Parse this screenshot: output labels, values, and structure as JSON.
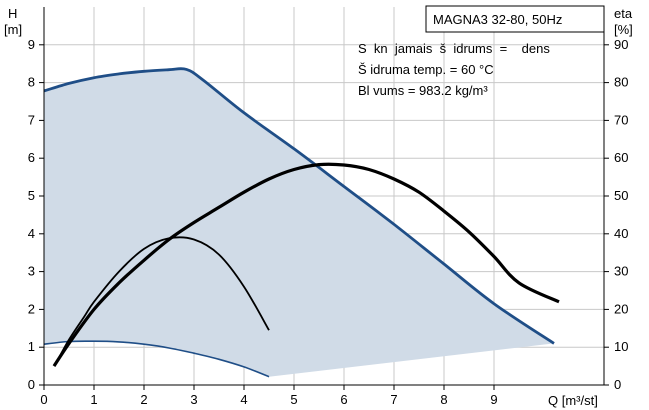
{
  "chart_data": {
    "type": "line",
    "title": "MAGNA3 32-80, 50Hz",
    "info_lines": [
      "S  kn  jamais  š  idrums  =    dens",
      "Š idruma temp. = 60 °C",
      "Bl vums = 983.2 kg/m³"
    ],
    "y_left": {
      "label_line1": "H",
      "label_line2": "[m]",
      "range": [
        0,
        10
      ],
      "ticks": [
        0,
        1,
        2,
        3,
        4,
        5,
        6,
        7,
        8,
        9
      ]
    },
    "y_right": {
      "label_line1": "eta",
      "label_line2": "[%]",
      "range": [
        0,
        100
      ],
      "ticks": [
        0,
        10,
        20,
        30,
        40,
        50,
        60,
        70,
        80,
        90
      ]
    },
    "x": {
      "label": "Q [m³/st]",
      "range": [
        0,
        11.2
      ],
      "ticks": [
        0,
        1,
        2,
        3,
        4,
        5,
        6,
        7,
        8,
        9
      ]
    },
    "grid": true,
    "colors": {
      "envelope_fill": "#d0dbe7",
      "head_line": "#1f4e87",
      "efficiency_line": "#000000"
    },
    "series": [
      {
        "role": "max-head-curve",
        "axis": "left",
        "points": [
          [
            0,
            7.78
          ],
          [
            0.5,
            7.98
          ],
          [
            1.0,
            8.13
          ],
          [
            1.5,
            8.23
          ],
          [
            2.0,
            8.3
          ],
          [
            2.5,
            8.34
          ],
          [
            2.85,
            8.35
          ],
          [
            3.2,
            8.05
          ],
          [
            4.0,
            7.2
          ],
          [
            5.0,
            6.25
          ],
          [
            6.0,
            5.25
          ],
          [
            7.0,
            4.25
          ],
          [
            8.0,
            3.2
          ],
          [
            9.0,
            2.15
          ],
          [
            10.2,
            1.1
          ]
        ]
      },
      {
        "role": "min-head-curve",
        "axis": "left",
        "points": [
          [
            0,
            1.08
          ],
          [
            0.5,
            1.15
          ],
          [
            1.0,
            1.16
          ],
          [
            1.5,
            1.14
          ],
          [
            2.0,
            1.08
          ],
          [
            2.5,
            0.98
          ],
          [
            3.0,
            0.84
          ],
          [
            3.5,
            0.68
          ],
          [
            4.0,
            0.48
          ],
          [
            4.5,
            0.22
          ]
        ]
      },
      {
        "role": "max-efficiency-curve",
        "axis": "right",
        "points": [
          [
            0.2,
            5
          ],
          [
            0.5,
            11
          ],
          [
            1.0,
            20
          ],
          [
            1.5,
            27
          ],
          [
            2.0,
            33
          ],
          [
            2.5,
            38.5
          ],
          [
            3.0,
            43
          ],
          [
            3.5,
            47
          ],
          [
            4.0,
            51
          ],
          [
            4.5,
            54.5
          ],
          [
            5.0,
            57
          ],
          [
            5.5,
            58.3
          ],
          [
            6.0,
            58.2
          ],
          [
            6.5,
            57
          ],
          [
            7.0,
            54.5
          ],
          [
            7.5,
            51
          ],
          [
            8.0,
            46
          ],
          [
            8.5,
            40.5
          ],
          [
            9.0,
            34
          ],
          [
            9.5,
            27
          ],
          [
            10.3,
            22
          ]
        ]
      },
      {
        "role": "min-efficiency-curve",
        "axis": "right",
        "points": [
          [
            0.25,
            6
          ],
          [
            0.5,
            12
          ],
          [
            0.8,
            18
          ],
          [
            1.0,
            22
          ],
          [
            1.5,
            30
          ],
          [
            2.0,
            36
          ],
          [
            2.5,
            38.8
          ],
          [
            3.0,
            38.5
          ],
          [
            3.5,
            34.5
          ],
          [
            4.0,
            26
          ],
          [
            4.5,
            14.5
          ]
        ]
      }
    ]
  }
}
